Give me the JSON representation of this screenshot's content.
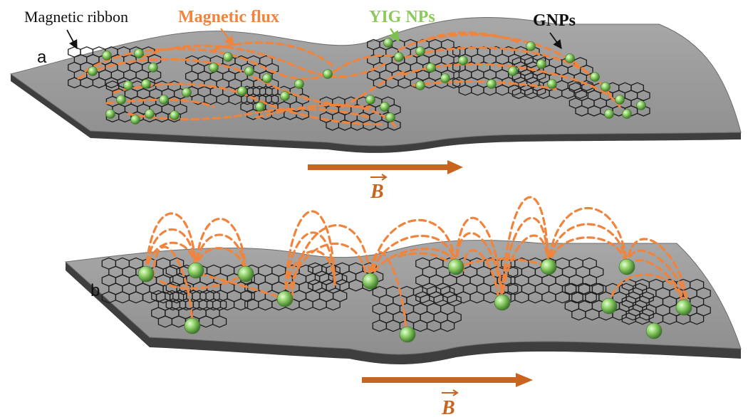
{
  "labels": {
    "magnetic_ribbon": "Magnetic ribbon",
    "magnetic_flux": "Magnetic flux",
    "yig_nps": "YIG NPs",
    "gnps": "GNPs",
    "panel_a": "a",
    "panel_b": "b",
    "field_symbol": "B"
  },
  "colors": {
    "ribbon_top": "#9c9c9c",
    "ribbon_edge": "#3e3e3e",
    "flux": "#f0843c",
    "arrow": "#c8641e",
    "yig_text": "#8cc85a",
    "nanoparticle": "#8fd16a",
    "hexagon_stroke": "#1c1c1c"
  },
  "icons": {
    "nanoparticle": "green-sphere-icon",
    "graphene": "hexagon-lattice-icon",
    "field_arrow": "arrow-right-icon"
  }
}
